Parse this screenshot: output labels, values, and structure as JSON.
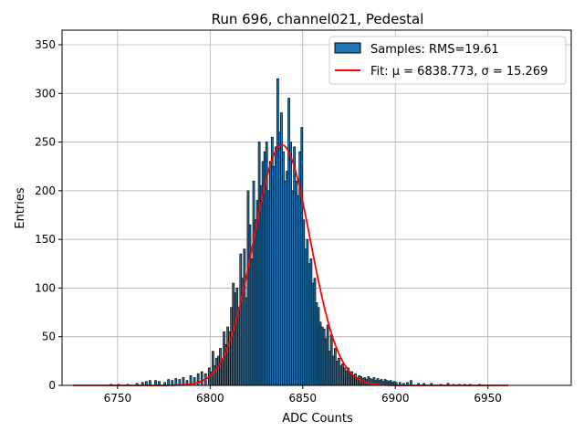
{
  "chart_data": {
    "type": "bar",
    "title": "Run 696, channel021, Pedestal",
    "xlabel": "ADC Counts",
    "ylabel": "Entries",
    "xlim": [
      6720,
      6995
    ],
    "ylim": [
      0,
      365
    ],
    "grid": true,
    "legend_placement": "top-right",
    "x_ticks": [
      6750,
      6800,
      6850,
      6900,
      6950
    ],
    "y_ticks": [
      0,
      50,
      100,
      150,
      200,
      250,
      300,
      350
    ],
    "bar_color": "#1f77b4",
    "bar_edge_color": "#000000",
    "fit_color": "#ff0000",
    "legend": {
      "samples_label": "Samples: RMS=19.61",
      "fit_label": "Fit: μ = 6838.773, σ = 15.269"
    },
    "histogram": {
      "bin_width": 1,
      "bins": [
        [
          6746,
          1
        ],
        [
          6750,
          1
        ],
        [
          6755,
          1
        ],
        [
          6760,
          2
        ],
        [
          6763,
          3
        ],
        [
          6765,
          4
        ],
        [
          6767,
          5
        ],
        [
          6770,
          5
        ],
        [
          6772,
          4
        ],
        [
          6775,
          3
        ],
        [
          6777,
          6
        ],
        [
          6779,
          5
        ],
        [
          6781,
          7
        ],
        [
          6783,
          6
        ],
        [
          6785,
          8
        ],
        [
          6787,
          5
        ],
        [
          6789,
          10
        ],
        [
          6791,
          8
        ],
        [
          6793,
          12
        ],
        [
          6795,
          14
        ],
        [
          6797,
          12
        ],
        [
          6799,
          18
        ],
        [
          6800,
          14
        ],
        [
          6801,
          35
        ],
        [
          6802,
          20
        ],
        [
          6803,
          28
        ],
        [
          6804,
          30
        ],
        [
          6805,
          38
        ],
        [
          6806,
          25
        ],
        [
          6807,
          55
        ],
        [
          6808,
          42
        ],
        [
          6809,
          60
        ],
        [
          6810,
          55
        ],
        [
          6811,
          80
        ],
        [
          6812,
          105
        ],
        [
          6813,
          95
        ],
        [
          6814,
          100
        ],
        [
          6815,
          80
        ],
        [
          6816,
          135
        ],
        [
          6817,
          110
        ],
        [
          6818,
          140
        ],
        [
          6819,
          90
        ],
        [
          6820,
          200
        ],
        [
          6821,
          165
        ],
        [
          6822,
          130
        ],
        [
          6823,
          210
        ],
        [
          6824,
          170
        ],
        [
          6825,
          190
        ],
        [
          6826,
          250
        ],
        [
          6827,
          205
        ],
        [
          6828,
          230
        ],
        [
          6829,
          240
        ],
        [
          6830,
          250
        ],
        [
          6831,
          200
        ],
        [
          6832,
          230
        ],
        [
          6833,
          255
        ],
        [
          6834,
          225
        ],
        [
          6835,
          245
        ],
        [
          6836,
          315
        ],
        [
          6837,
          260
        ],
        [
          6838,
          280
        ],
        [
          6839,
          240
        ],
        [
          6840,
          210
        ],
        [
          6841,
          220
        ],
        [
          6842,
          295
        ],
        [
          6843,
          250
        ],
        [
          6844,
          200
        ],
        [
          6845,
          245
        ],
        [
          6846,
          210
        ],
        [
          6847,
          195
        ],
        [
          6848,
          240
        ],
        [
          6849,
          265
        ],
        [
          6850,
          170
        ],
        [
          6851,
          140
        ],
        [
          6852,
          150
        ],
        [
          6853,
          125
        ],
        [
          6854,
          130
        ],
        [
          6855,
          105
        ],
        [
          6856,
          110
        ],
        [
          6857,
          85
        ],
        [
          6858,
          80
        ],
        [
          6859,
          65
        ],
        [
          6860,
          60
        ],
        [
          6861,
          58
        ],
        [
          6862,
          48
        ],
        [
          6863,
          62
        ],
        [
          6864,
          35
        ],
        [
          6865,
          52
        ],
        [
          6866,
          30
        ],
        [
          6867,
          38
        ],
        [
          6868,
          25
        ],
        [
          6869,
          28
        ],
        [
          6870,
          20
        ],
        [
          6871,
          22
        ],
        [
          6872,
          18
        ],
        [
          6873,
          15
        ],
        [
          6874,
          18
        ],
        [
          6875,
          12
        ],
        [
          6876,
          14
        ],
        [
          6877,
          10
        ],
        [
          6878,
          12
        ],
        [
          6879,
          8
        ],
        [
          6880,
          10
        ],
        [
          6881,
          9
        ],
        [
          6882,
          7
        ],
        [
          6883,
          8
        ],
        [
          6884,
          6
        ],
        [
          6885,
          9
        ],
        [
          6886,
          7
        ],
        [
          6887,
          6
        ],
        [
          6888,
          8
        ],
        [
          6889,
          5
        ],
        [
          6890,
          7
        ],
        [
          6891,
          5
        ],
        [
          6892,
          6
        ],
        [
          6893,
          4
        ],
        [
          6894,
          6
        ],
        [
          6895,
          5
        ],
        [
          6896,
          4
        ],
        [
          6897,
          5
        ],
        [
          6898,
          3
        ],
        [
          6899,
          4
        ],
        [
          6900,
          3
        ],
        [
          6902,
          3
        ],
        [
          6904,
          2
        ],
        [
          6906,
          3
        ],
        [
          6908,
          5
        ],
        [
          6912,
          2
        ],
        [
          6915,
          2
        ],
        [
          6919,
          2
        ],
        [
          6924,
          1
        ],
        [
          6928,
          2
        ],
        [
          6931,
          1
        ],
        [
          6934,
          1
        ],
        [
          6937,
          1
        ],
        [
          6940,
          1
        ],
        [
          6945,
          1
        ]
      ]
    },
    "fit": {
      "type": "gaussian",
      "mu": 6838.773,
      "sigma": 15.269,
      "amplitude": 247,
      "x_range": [
        6726,
        6961
      ]
    }
  }
}
